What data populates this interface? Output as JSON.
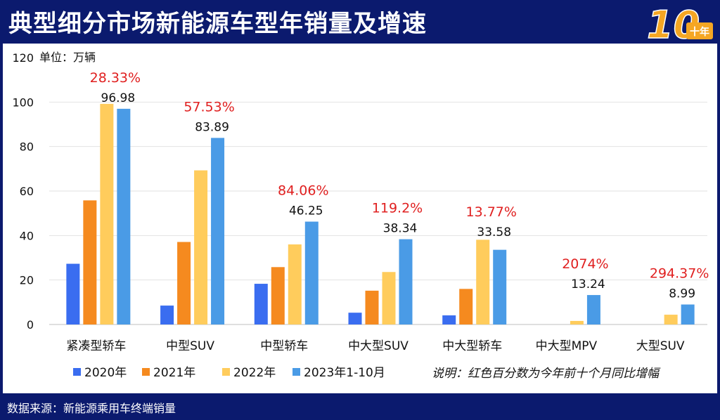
{
  "header": {
    "title": "典型细分市场新能源车型年销量及增速",
    "logo_number": "10",
    "logo_caption": "十年"
  },
  "footer": {
    "source": "数据来源：新能源乘用车终端销量"
  },
  "colors": {
    "s2020": "#3a6df0",
    "s2021": "#f58a1f",
    "s2022": "#ffcc5c",
    "s2023": "#4a9be6",
    "growth": "#e02020",
    "navy": "#0b1a6e"
  },
  "chart_data": {
    "type": "bar",
    "title": "典型细分市场新能源车型年销量及增速",
    "unit_label": "单位：万辆",
    "ylim": [
      0,
      120
    ],
    "yticks": [
      0,
      20,
      40,
      60,
      80,
      100,
      120
    ],
    "categories": [
      "紧凑型轿车",
      "中型SUV",
      "中型轿车",
      "中大型SUV",
      "中大型轿车",
      "中大型MPV",
      "大型SUV"
    ],
    "series": [
      {
        "name": "2020年",
        "values": [
          27.3,
          8.5,
          18.3,
          5.3,
          4.1,
          0,
          0
        ]
      },
      {
        "name": "2021年",
        "values": [
          55.8,
          37.1,
          25.8,
          15.2,
          16.0,
          0,
          0
        ]
      },
      {
        "name": "2022年",
        "values": [
          99.2,
          69.3,
          36.0,
          23.6,
          38.1,
          1.6,
          4.4
        ]
      },
      {
        "name": "2023年1-10月",
        "values": [
          96.98,
          83.89,
          46.25,
          38.34,
          33.58,
          13.24,
          8.99
        ]
      }
    ],
    "data_labels": [
      "96.98",
      "83.89",
      "46.25",
      "38.34",
      "33.58",
      "13.24",
      "8.99"
    ],
    "growth_labels": [
      "28.33%",
      "57.53%",
      "84.06%",
      "119.2%",
      "13.77%",
      "2074%",
      "294.37%"
    ],
    "note": "说明：红色百分数为今年前十个月同比增幅",
    "grid": true,
    "legend": "bottom"
  }
}
